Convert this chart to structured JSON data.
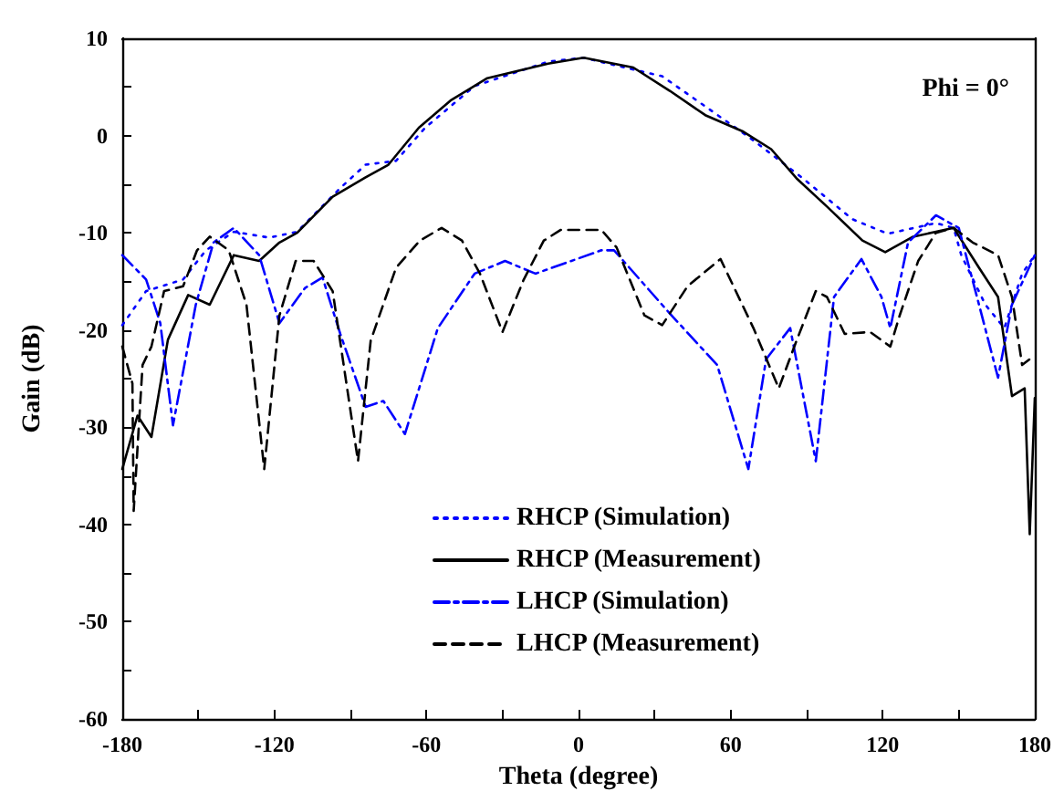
{
  "chart_data": {
    "type": "line",
    "xlabel": "Theta (degree)",
    "ylabel": "Gain (dB)",
    "annotations": [
      "Phi = 0°"
    ],
    "xlim": [
      -180,
      180
    ],
    "xticks": [
      -180,
      -120,
      -60,
      0,
      60,
      120,
      180
    ],
    "ylim": [
      -60,
      10
    ],
    "yticks": [
      -60,
      -50,
      -40,
      -30,
      -20,
      -10,
      0,
      10
    ],
    "grid": false,
    "legend": "bottom",
    "marker": "none",
    "series": [
      {
        "name": "RHCP (Simulation)",
        "color": "#0000ff",
        "line_style": "dotted",
        "x": [
          -180,
          -170.6,
          -156,
          -147,
          -136,
          -122,
          -111,
          -94,
          -84,
          -72,
          -60.5,
          -41,
          -12,
          2,
          33,
          50,
          69,
          88.5,
          108,
          122,
          141,
          148,
          151,
          160.5,
          168,
          175,
          180
        ],
        "values": [
          -19.5,
          -16,
          -14.8,
          -11.8,
          -9.9,
          -10.5,
          -9.9,
          -5.4,
          -3,
          -2.6,
          0.8,
          5.1,
          7.6,
          8,
          6.1,
          3,
          -0.5,
          -4.4,
          -8.6,
          -10.1,
          -9,
          -9.5,
          -12.3,
          -17.4,
          -19.8,
          -14.2,
          -12.3
        ]
      },
      {
        "name": "RHCP (Measurement)",
        "color": "#000000",
        "line_style": "solid",
        "x": [
          -180,
          -174,
          -168.5,
          -162,
          -154,
          -145.5,
          -136,
          -126,
          -118,
          -111,
          -97,
          -84,
          -75,
          -63,
          -50.5,
          -36,
          -12,
          2,
          21.6,
          36,
          50,
          65,
          76,
          86,
          98,
          112,
          121,
          132,
          141,
          148,
          158,
          165.5,
          171,
          176,
          178,
          180
        ],
        "values": [
          -34.3,
          -28.8,
          -31,
          -21,
          -16.4,
          -17.4,
          -12.3,
          -12.9,
          -11,
          -10,
          -6.3,
          -4.3,
          -3,
          0.8,
          3.6,
          5.9,
          7.4,
          8,
          7,
          4.6,
          2.1,
          0.4,
          -1.4,
          -4.4,
          -7.3,
          -10.8,
          -12,
          -10.4,
          -9.9,
          -9.5,
          -13.6,
          -16.6,
          -26.8,
          -26,
          -41,
          -27
        ]
      },
      {
        "name": "LHCP (Simulation)",
        "color": "#0000ff",
        "line_style": "dashdot",
        "x": [
          -180,
          -170.6,
          -165,
          -160,
          -151,
          -144,
          -136,
          -126,
          -118,
          -108,
          -101,
          -94,
          -84,
          -77,
          -68.5,
          -55.5,
          -41,
          -29,
          -17,
          9,
          14,
          36,
          54.7,
          67,
          74,
          83.5,
          93.6,
          100.8,
          111.6,
          119.5,
          123,
          130,
          141,
          150,
          158,
          165.5,
          171,
          180
        ],
        "values": [
          -12.3,
          -14.8,
          -19.3,
          -29.8,
          -17.4,
          -11,
          -9.5,
          -12.3,
          -19.3,
          -15.7,
          -14.6,
          -20.4,
          -27.9,
          -27.3,
          -30.7,
          -19.8,
          -14.2,
          -12.9,
          -14.2,
          -11.8,
          -11.8,
          -18.3,
          -23.6,
          -34.3,
          -23,
          -19.8,
          -33.5,
          -16.6,
          -12.7,
          -16.6,
          -19.8,
          -11,
          -8.2,
          -9.5,
          -17.4,
          -24.9,
          -17.4,
          -12.3
        ]
      },
      {
        "name": "LHCP (Measurement)",
        "color": "#000000",
        "line_style": "dashed",
        "x": [
          -180,
          -176,
          -175.5,
          -172,
          -168.5,
          -163.5,
          -156,
          -150.5,
          -145.5,
          -138,
          -131,
          -124,
          -118,
          -111.6,
          -104.5,
          -97,
          -87,
          -82,
          -72,
          -62.6,
          -54,
          -46,
          -38.9,
          -30,
          -21.6,
          -13.7,
          -7,
          9,
          15,
          26,
          33,
          43,
          56,
          69,
          79,
          86,
          93.6,
          98,
          105,
          115,
          123,
          126.7,
          134,
          141,
          148,
          155.5,
          165.5,
          171,
          175,
          180
        ],
        "values": [
          -21.7,
          -25.5,
          -38.6,
          -23.6,
          -21.7,
          -16,
          -15.5,
          -11.8,
          -10.4,
          -11.8,
          -17.4,
          -34.3,
          -18.5,
          -12.9,
          -12.9,
          -16,
          -33.5,
          -21.1,
          -13.6,
          -10.8,
          -9.5,
          -10.8,
          -14.2,
          -20.2,
          -14.8,
          -10.8,
          -9.7,
          -9.7,
          -11.5,
          -18.5,
          -19.5,
          -15.5,
          -12.7,
          -19.8,
          -26,
          -21.1,
          -16,
          -16.6,
          -20.4,
          -20.2,
          -21.7,
          -18.5,
          -12.9,
          -10,
          -9.5,
          -11,
          -12.3,
          -16.6,
          -23.6,
          -22.6
        ]
      }
    ]
  }
}
